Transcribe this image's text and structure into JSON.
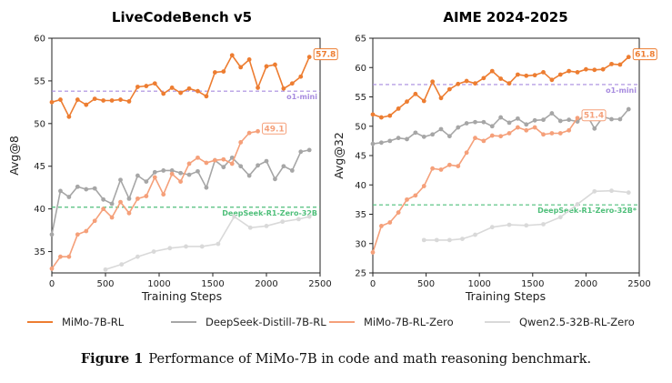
{
  "figure": {
    "caption_label": "Figure 1",
    "caption_text": "Performance of MiMo-7B in code and math reasoning benchmark.",
    "legend": [
      {
        "name": "MiMo-7B-RL",
        "color": "#ed7d31"
      },
      {
        "name": "DeepSeek-Distill-7B-RL",
        "color": "#a6a6a6"
      },
      {
        "name": "MiMo-7B-RL-Zero",
        "color": "#f5a07a"
      },
      {
        "name": "Qwen2.5-32B-RL-Zero",
        "color": "#d9d9d9"
      }
    ]
  },
  "chart_data": [
    {
      "type": "line",
      "title": "LiveCodeBench v5",
      "xlabel": "Training Steps",
      "ylabel": "Avg@8",
      "xlim": [
        0,
        2500
      ],
      "ylim": [
        32.5,
        60
      ],
      "xticks": [
        0,
        500,
        1000,
        1500,
        2000,
        2500
      ],
      "yticks": [
        35,
        40,
        45,
        50,
        55,
        60
      ],
      "reference_lines": [
        {
          "label": "o1-mini",
          "value": 53.8,
          "color": "#a78bdf"
        },
        {
          "label": "DeepSeek-R1-Zero-32B",
          "value": 40.2,
          "color": "#4fbf7a"
        }
      ],
      "annotations": [
        {
          "text": "57.8",
          "series": "MiMo-7B-RL"
        },
        {
          "text": "49.1",
          "series": "MiMo-7B-RL-Zero"
        }
      ],
      "series": [
        {
          "name": "MiMo-7B-RL",
          "color": "#ed7d31",
          "x": [
            0,
            80,
            160,
            240,
            320,
            400,
            480,
            560,
            640,
            720,
            800,
            880,
            960,
            1040,
            1120,
            1200,
            1280,
            1360,
            1440,
            1520,
            1600,
            1680,
            1760,
            1840,
            1920,
            2000,
            2080,
            2160,
            2240,
            2320,
            2400
          ],
          "y": [
            52.5,
            52.8,
            50.8,
            52.8,
            52.2,
            52.9,
            52.7,
            52.7,
            52.8,
            52.6,
            54.3,
            54.4,
            54.7,
            53.5,
            54.2,
            53.6,
            54.1,
            53.8,
            53.2,
            56.0,
            56.1,
            58.0,
            56.6,
            57.5,
            54.2,
            56.7,
            56.9,
            54.1,
            54.7,
            55.5,
            57.8
          ]
        },
        {
          "name": "DeepSeek-Distill-7B-RL",
          "color": "#a6a6a6",
          "x": [
            0,
            80,
            160,
            240,
            320,
            400,
            480,
            560,
            640,
            720,
            800,
            880,
            960,
            1040,
            1120,
            1200,
            1280,
            1360,
            1440,
            1520,
            1600,
            1680,
            1760,
            1840,
            1920,
            2000,
            2080,
            2160,
            2240,
            2320,
            2400
          ],
          "y": [
            37.0,
            42.1,
            41.4,
            42.6,
            42.3,
            42.4,
            41.1,
            40.6,
            43.4,
            41.2,
            43.9,
            43.2,
            44.3,
            44.5,
            44.5,
            44.2,
            44.0,
            44.4,
            42.5,
            45.7,
            44.9,
            46.0,
            45.0,
            43.9,
            45.1,
            45.6,
            43.5,
            45.0,
            44.5,
            46.7,
            46.9
          ]
        },
        {
          "name": "MiMo-7B-RL-Zero",
          "color": "#f5a07a",
          "x": [
            0,
            80,
            160,
            240,
            320,
            400,
            480,
            560,
            640,
            720,
            800,
            880,
            960,
            1040,
            1120,
            1200,
            1280,
            1360,
            1440,
            1520,
            1600,
            1680,
            1760,
            1840,
            1920
          ],
          "y": [
            33.0,
            34.4,
            34.4,
            37.0,
            37.4,
            38.6,
            40.0,
            39.0,
            40.8,
            39.5,
            41.2,
            41.5,
            43.7,
            41.7,
            44.1,
            43.2,
            45.3,
            46.0,
            45.4,
            45.7,
            45.8,
            45.3,
            47.8,
            48.9,
            49.1
          ]
        },
        {
          "name": "Qwen2.5-32B-RL-Zero",
          "color": "#d9d9d9",
          "x": [
            500,
            650,
            800,
            950,
            1100,
            1250,
            1400,
            1550,
            1700,
            1850,
            2000,
            2150,
            2300,
            2400
          ],
          "y": [
            32.9,
            33.5,
            34.4,
            35.0,
            35.4,
            35.6,
            35.6,
            35.9,
            39.1,
            37.8,
            38.0,
            38.5,
            38.8,
            39.1
          ]
        }
      ]
    },
    {
      "type": "line",
      "title": "AIME 2024-2025",
      "xlabel": "Training Steps",
      "ylabel": "Avg@32",
      "xlim": [
        0,
        2500
      ],
      "ylim": [
        25,
        65
      ],
      "xticks": [
        0,
        500,
        1000,
        1500,
        2000,
        2500
      ],
      "yticks": [
        25,
        30,
        35,
        40,
        45,
        50,
        55,
        60,
        65
      ],
      "reference_lines": [
        {
          "label": "o1-mini",
          "value": 57.1,
          "color": "#a78bdf"
        },
        {
          "label": "DeepSeek-R1-Zero-32B*",
          "value": 36.6,
          "color": "#4fbf7a"
        }
      ],
      "annotations": [
        {
          "text": "61.8",
          "series": "MiMo-7B-RL"
        },
        {
          "text": "51.4",
          "series": "MiMo-7B-RL-Zero"
        }
      ],
      "series": [
        {
          "name": "MiMo-7B-RL",
          "color": "#ed7d31",
          "x": [
            0,
            80,
            160,
            240,
            320,
            400,
            480,
            560,
            640,
            720,
            800,
            880,
            960,
            1040,
            1120,
            1200,
            1280,
            1360,
            1440,
            1520,
            1600,
            1680,
            1760,
            1840,
            1920,
            2000,
            2080,
            2160,
            2240,
            2320,
            2400
          ],
          "y": [
            52.0,
            51.5,
            51.8,
            53.0,
            54.2,
            55.5,
            54.3,
            57.6,
            54.8,
            56.3,
            57.2,
            57.7,
            57.3,
            58.2,
            59.4,
            58.1,
            57.3,
            58.8,
            58.6,
            58.7,
            59.2,
            57.9,
            58.8,
            59.4,
            59.2,
            59.7,
            59.6,
            59.7,
            60.6,
            60.5,
            61.8
          ]
        },
        {
          "name": "DeepSeek-Distill-7B-RL",
          "color": "#a6a6a6",
          "x": [
            0,
            80,
            160,
            240,
            320,
            400,
            480,
            560,
            640,
            720,
            800,
            880,
            960,
            1040,
            1120,
            1200,
            1280,
            1360,
            1440,
            1520,
            1600,
            1680,
            1760,
            1840,
            1920,
            2000,
            2080,
            2160,
            2240,
            2320,
            2400
          ],
          "y": [
            47.0,
            47.2,
            47.5,
            48.0,
            47.8,
            48.9,
            48.2,
            48.6,
            49.5,
            48.3,
            49.8,
            50.5,
            50.7,
            50.7,
            50.0,
            51.5,
            50.6,
            51.3,
            50.3,
            51.0,
            51.1,
            52.2,
            50.9,
            51.1,
            50.8,
            52.2,
            49.6,
            51.6,
            51.2,
            51.2,
            52.9
          ]
        },
        {
          "name": "MiMo-7B-RL-Zero",
          "color": "#f5a07a",
          "x": [
            0,
            80,
            160,
            240,
            320,
            400,
            480,
            560,
            640,
            720,
            800,
            880,
            960,
            1040,
            1120,
            1200,
            1280,
            1360,
            1440,
            1520,
            1600,
            1680,
            1760,
            1840,
            1920
          ],
          "y": [
            28.5,
            33.0,
            33.6,
            35.3,
            37.5,
            38.2,
            39.8,
            42.8,
            42.6,
            43.4,
            43.2,
            45.5,
            48.0,
            47.5,
            48.4,
            48.3,
            48.8,
            49.8,
            49.3,
            49.8,
            48.6,
            48.8,
            48.8,
            49.3,
            51.4
          ]
        },
        {
          "name": "Qwen2.5-32B-RL-Zero",
          "color": "#d9d9d9",
          "x": [
            480,
            600,
            720,
            840,
            960,
            1120,
            1280,
            1440,
            1600,
            1760,
            1920,
            2080,
            2240,
            2400
          ],
          "y": [
            30.6,
            30.6,
            30.6,
            30.8,
            31.5,
            32.8,
            33.2,
            33.1,
            33.3,
            34.5,
            36.7,
            38.9,
            39.0,
            38.7
          ]
        }
      ]
    }
  ]
}
